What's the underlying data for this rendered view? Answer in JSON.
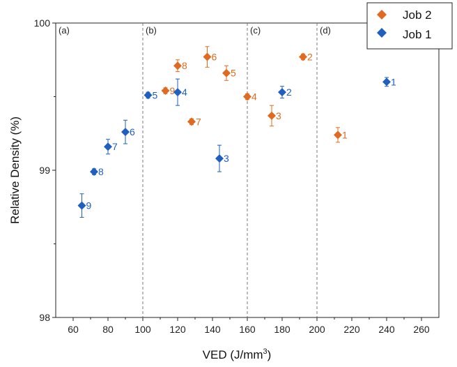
{
  "chart_data": {
    "type": "scatter",
    "title": "",
    "xlabel": "VED (J/mm",
    "xlabel_sup": "3",
    "xlabel_end": ")",
    "ylabel": "Relative Density (%)",
    "xlim": [
      50,
      270
    ],
    "ylim": [
      98,
      100
    ],
    "x_ticks": [
      60,
      80,
      100,
      120,
      140,
      160,
      180,
      200,
      220,
      240,
      260
    ],
    "y_ticks": [
      98,
      99,
      100
    ],
    "grid": false,
    "legend_position": "top-right",
    "region_lines": [
      100,
      160,
      200
    ],
    "region_labels": [
      {
        "text": "(a)",
        "x": 50
      },
      {
        "text": "(b)",
        "x": 100
      },
      {
        "text": "(c)",
        "x": 160
      },
      {
        "text": "(d)",
        "x": 200
      }
    ],
    "series": [
      {
        "name": "Job 2",
        "color": "#e06a1f",
        "points": [
          {
            "x": 212,
            "y": 99.24,
            "err": 0.05,
            "label": "1"
          },
          {
            "x": 192,
            "y": 99.77,
            "err": 0.02,
            "label": "2"
          },
          {
            "x": 174,
            "y": 99.37,
            "err": 0.07,
            "label": "3"
          },
          {
            "x": 160,
            "y": 99.5,
            "err": 0.02,
            "label": "4"
          },
          {
            "x": 148,
            "y": 99.66,
            "err": 0.05,
            "label": "5"
          },
          {
            "x": 137,
            "y": 99.77,
            "err": 0.07,
            "label": "6"
          },
          {
            "x": 128,
            "y": 99.33,
            "err": 0.02,
            "label": "7"
          },
          {
            "x": 120,
            "y": 99.71,
            "err": 0.04,
            "label": "8"
          },
          {
            "x": 113,
            "y": 99.54,
            "err": 0.02,
            "label": "9"
          }
        ]
      },
      {
        "name": "Job 1",
        "color": "#1f5fbf",
        "points": [
          {
            "x": 240,
            "y": 99.6,
            "err": 0.03,
            "label": "1"
          },
          {
            "x": 180,
            "y": 99.53,
            "err": 0.04,
            "label": "2"
          },
          {
            "x": 144,
            "y": 99.08,
            "err": 0.09,
            "label": "3"
          },
          {
            "x": 120,
            "y": 99.53,
            "err": 0.09,
            "label": "4"
          },
          {
            "x": 103,
            "y": 99.51,
            "err": 0.02,
            "label": "5"
          },
          {
            "x": 90,
            "y": 99.26,
            "err": 0.08,
            "label": "6"
          },
          {
            "x": 80,
            "y": 99.16,
            "err": 0.05,
            "label": "7"
          },
          {
            "x": 72,
            "y": 98.99,
            "err": 0.02,
            "label": "8"
          },
          {
            "x": 65,
            "y": 98.76,
            "err": 0.08,
            "label": "9"
          }
        ]
      }
    ]
  }
}
